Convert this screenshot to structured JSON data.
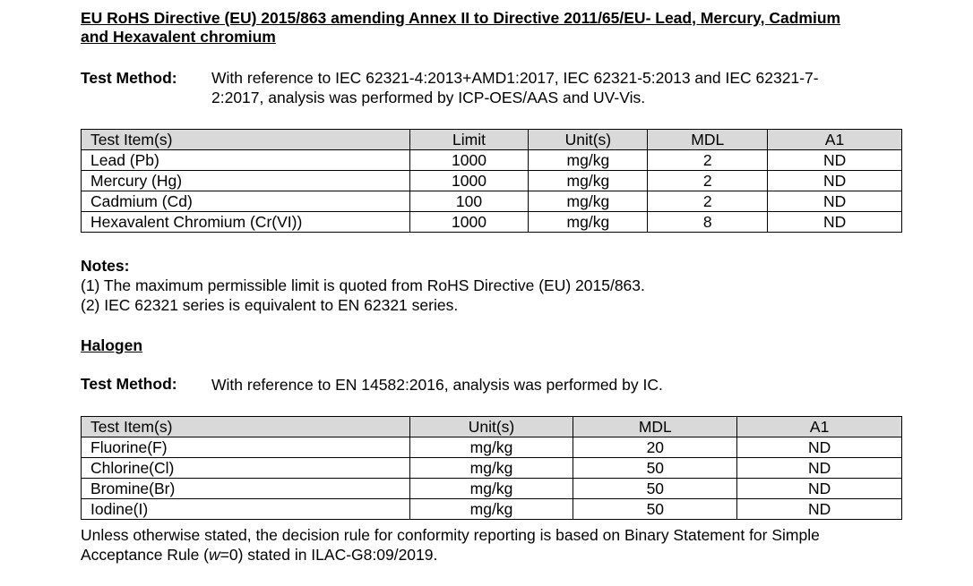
{
  "title": "EU RoHS Directive (EU) 2015/863 amending Annex II to Directive 2011/65/EU- Lead, Mercury, Cadmium and Hexavalent chromium",
  "rohs": {
    "method_label": "Test Method:",
    "method_line1": "With reference to IEC 62321-4:2013+AMD1:2017, IEC 62321-5:2013 and IEC 62321-7-",
    "method_line2": "2:2017, analysis was performed by ICP-OES/AAS and UV-Vis.",
    "headers": [
      "Test Item(s)",
      "Limit",
      "Unit(s)",
      "MDL",
      "A1"
    ],
    "rows": [
      [
        "Lead (Pb)",
        "1000",
        "mg/kg",
        "2",
        "ND"
      ],
      [
        "Mercury (Hg)",
        "1000",
        "mg/kg",
        "2",
        "ND"
      ],
      [
        "Cadmium (Cd)",
        "100",
        "mg/kg",
        "2",
        "ND"
      ],
      [
        "Hexavalent Chromium (Cr(VI))",
        "1000",
        "mg/kg",
        "8",
        "ND"
      ]
    ]
  },
  "notes": {
    "title": "Notes:",
    "items": [
      "(1) The maximum permissible limit is quoted from RoHS Directive (EU) 2015/863.",
      "(2) IEC 62321 series is equivalent to EN 62321 series."
    ]
  },
  "halogen": {
    "title": "Halogen",
    "method_label": "Test Method:",
    "method": "With reference to EN 14582:2016, analysis was performed by IC.",
    "headers": [
      "Test Item(s)",
      "Unit(s)",
      "MDL",
      "A1"
    ],
    "rows": [
      [
        "Fluorine(F)",
        "mg/kg",
        "20",
        "ND"
      ],
      [
        "Chlorine(Cl)",
        "mg/kg",
        "50",
        "ND"
      ],
      [
        "Bromine(Br)",
        "mg/kg",
        "50",
        "ND"
      ],
      [
        "Iodine(I)",
        "mg/kg",
        "50",
        "ND"
      ]
    ]
  },
  "decision": {
    "line1": "Unless otherwise stated, the decision rule for conformity reporting is based on Binary Statement for Simple",
    "line2_pre": "Acceptance Rule (",
    "line2_var": "w",
    "line2_post": "=0) stated in ILAC-G8:09/2019."
  }
}
